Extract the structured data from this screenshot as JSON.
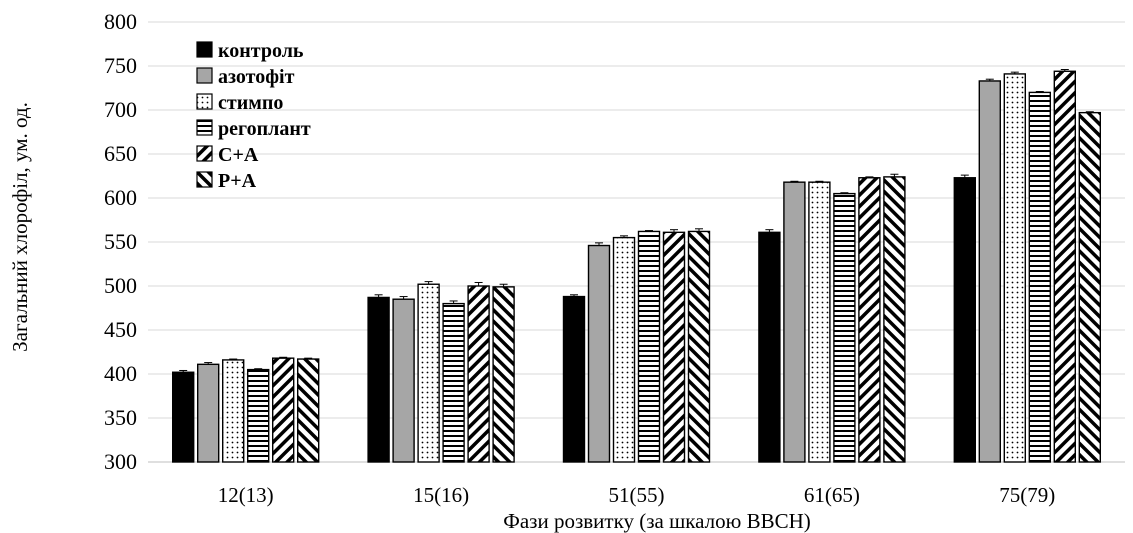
{
  "chart_data": {
    "type": "bar",
    "title": "",
    "xlabel": "Фази розвитку (за шкалою BBCH)",
    "ylabel": "Загальний хлорофіл, ум. од.",
    "ylim": [
      300,
      800
    ],
    "yticks": [
      300,
      350,
      400,
      450,
      500,
      550,
      600,
      650,
      700,
      750,
      800
    ],
    "grid": "horizontal",
    "legend_position": "top-left",
    "categories": [
      "12(13)",
      "15(16)",
      "51(55)",
      "61(65)",
      "75(79)"
    ],
    "series": [
      {
        "name": "контроль",
        "pattern": "solid-black",
        "values": [
          402,
          487,
          488,
          561,
          623
        ],
        "errors": [
          2,
          3,
          2,
          3,
          3
        ]
      },
      {
        "name": "азотофіт",
        "pattern": "solid-gray",
        "values": [
          411,
          485,
          546,
          618,
          733
        ],
        "errors": [
          2,
          3,
          3,
          1,
          2
        ]
      },
      {
        "name": "стимпо",
        "pattern": "dots",
        "values": [
          416,
          502,
          555,
          618,
          741
        ],
        "errors": [
          1,
          3,
          2,
          1,
          2
        ]
      },
      {
        "name": "регоплант",
        "pattern": "horizontal-lines",
        "values": [
          405,
          480,
          562,
          605,
          720
        ],
        "errors": [
          1,
          3,
          1,
          1,
          1
        ]
      },
      {
        "name": "С+А",
        "pattern": "diagonal-up",
        "values": [
          418,
          500,
          561,
          623,
          744
        ],
        "errors": [
          1,
          4,
          3,
          1,
          2
        ]
      },
      {
        "name": "Р+А",
        "pattern": "diagonal-down",
        "values": [
          417,
          499,
          562,
          624,
          697
        ],
        "errors": [
          1,
          3,
          3,
          3,
          1
        ]
      }
    ]
  }
}
